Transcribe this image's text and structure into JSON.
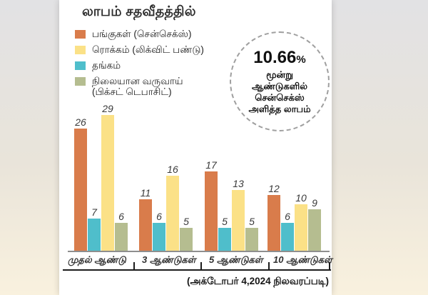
{
  "title": "லாபம் சதவீதத்தில்",
  "legend": [
    {
      "label": "பங்குகள் (சென்செக்ஸ்)",
      "color": "#d97c4b"
    },
    {
      "label": "ரொக்கம் (லிக்விட் பண்டு)",
      "color": "#fbe187"
    },
    {
      "label": "தங்கம்",
      "color": "#4fbecb"
    },
    {
      "label": "நிலையான வருவாய்",
      "label2": "(பிக்சட் டெபாசிட்)",
      "color": "#b5bd90"
    }
  ],
  "highlight": {
    "value": "10.66",
    "percent_sign": "%",
    "line1": "மூன்று",
    "line2": "ஆண்டுகளில்",
    "line3": "சென்செக்ஸ்",
    "line4": "அளித்த லாபம்"
  },
  "footnote": "(அக்டோபர் 4,2024 நிலவரப்படி)",
  "colors": {
    "stocks_orange": "#d97c4b",
    "cash_yellow": "#fbe187",
    "gold_teal": "#4fbecb",
    "fixed_olive": "#b5bd90",
    "baseline_gray": "#8e8e8e",
    "rule_black": "#1c1c1c"
  },
  "chart_data": {
    "type": "bar",
    "title": "லாபம் சதவீதத்தில்",
    "categories": [
      "முதல் ஆண்டு",
      "3 ஆண்டுகள்",
      "5 ஆண்டுகள்",
      "10 ஆண்டுகள்"
    ],
    "series": [
      {
        "name": "பங்குகள் (சென்செக்ஸ்)",
        "color": "#d97c4b",
        "values": [
          26,
          11,
          17,
          12
        ]
      },
      {
        "name": "தங்கம்",
        "color": "#4fbecb",
        "values": [
          7,
          6,
          5,
          6
        ]
      },
      {
        "name": "ரொக்கம் (லிக்விட் பண்டு)",
        "color": "#fbe187",
        "values": [
          29,
          16,
          13,
          10
        ]
      },
      {
        "name": "நிலையான வருவாய் (பிக்சட் டெபாசிட்)",
        "color": "#b5bd90",
        "values": [
          6,
          5,
          5,
          9
        ]
      }
    ],
    "xlabel": "",
    "ylabel": "லாபம் சதவீதத்தில்",
    "ylim": [
      0,
      30
    ],
    "grid": false,
    "value_labels": true,
    "legend_position": "top-left",
    "annotation": "10.66% மூன்று ஆண்டுகளில் சென்செக்ஸ் அளித்த லாபம்",
    "footnote": "(அக்டோபர் 4,2024 நிலவரப்படி)"
  }
}
